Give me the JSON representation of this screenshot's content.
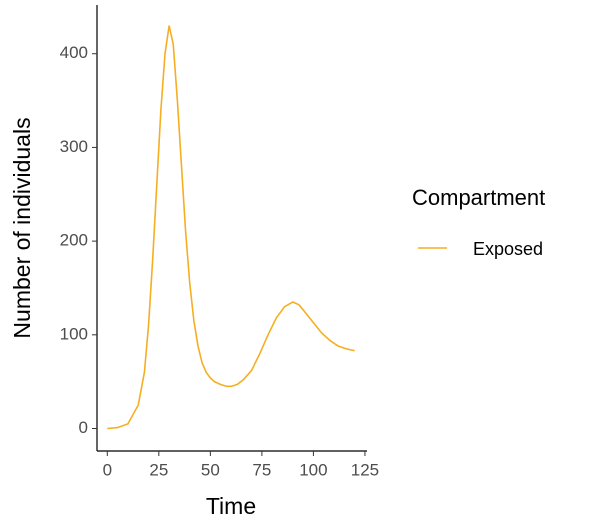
{
  "chart_data": {
    "type": "line",
    "x_label": "Time",
    "y_label": "Number of individuals",
    "legend_title": "Compartment",
    "x": [
      0,
      5,
      10,
      15,
      18,
      20,
      22,
      24,
      26,
      28,
      30,
      32,
      34,
      36,
      38,
      40,
      42,
      44,
      46,
      48,
      50,
      52,
      55,
      58,
      60,
      63,
      66,
      70,
      74,
      78,
      82,
      86,
      90,
      93,
      96,
      100,
      104,
      108,
      112,
      116,
      120
    ],
    "series": [
      {
        "name": "Exposed",
        "color": "#f5ae22",
        "values": [
          0,
          1,
          5,
          25,
          60,
          110,
          180,
          260,
          340,
          400,
          430,
          410,
          350,
          280,
          210,
          155,
          115,
          88,
          70,
          60,
          54,
          50,
          47,
          45,
          45,
          47,
          52,
          62,
          80,
          100,
          118,
          130,
          135,
          132,
          124,
          113,
          102,
          94,
          88,
          85,
          83
        ]
      }
    ],
    "xlim": [
      -5,
      126
    ],
    "ylim": [
      -24,
      452
    ],
    "xticks": [
      0,
      25,
      50,
      75,
      100,
      125
    ],
    "yticks": [
      0,
      100,
      200,
      300,
      400
    ],
    "legend_position": "right"
  }
}
